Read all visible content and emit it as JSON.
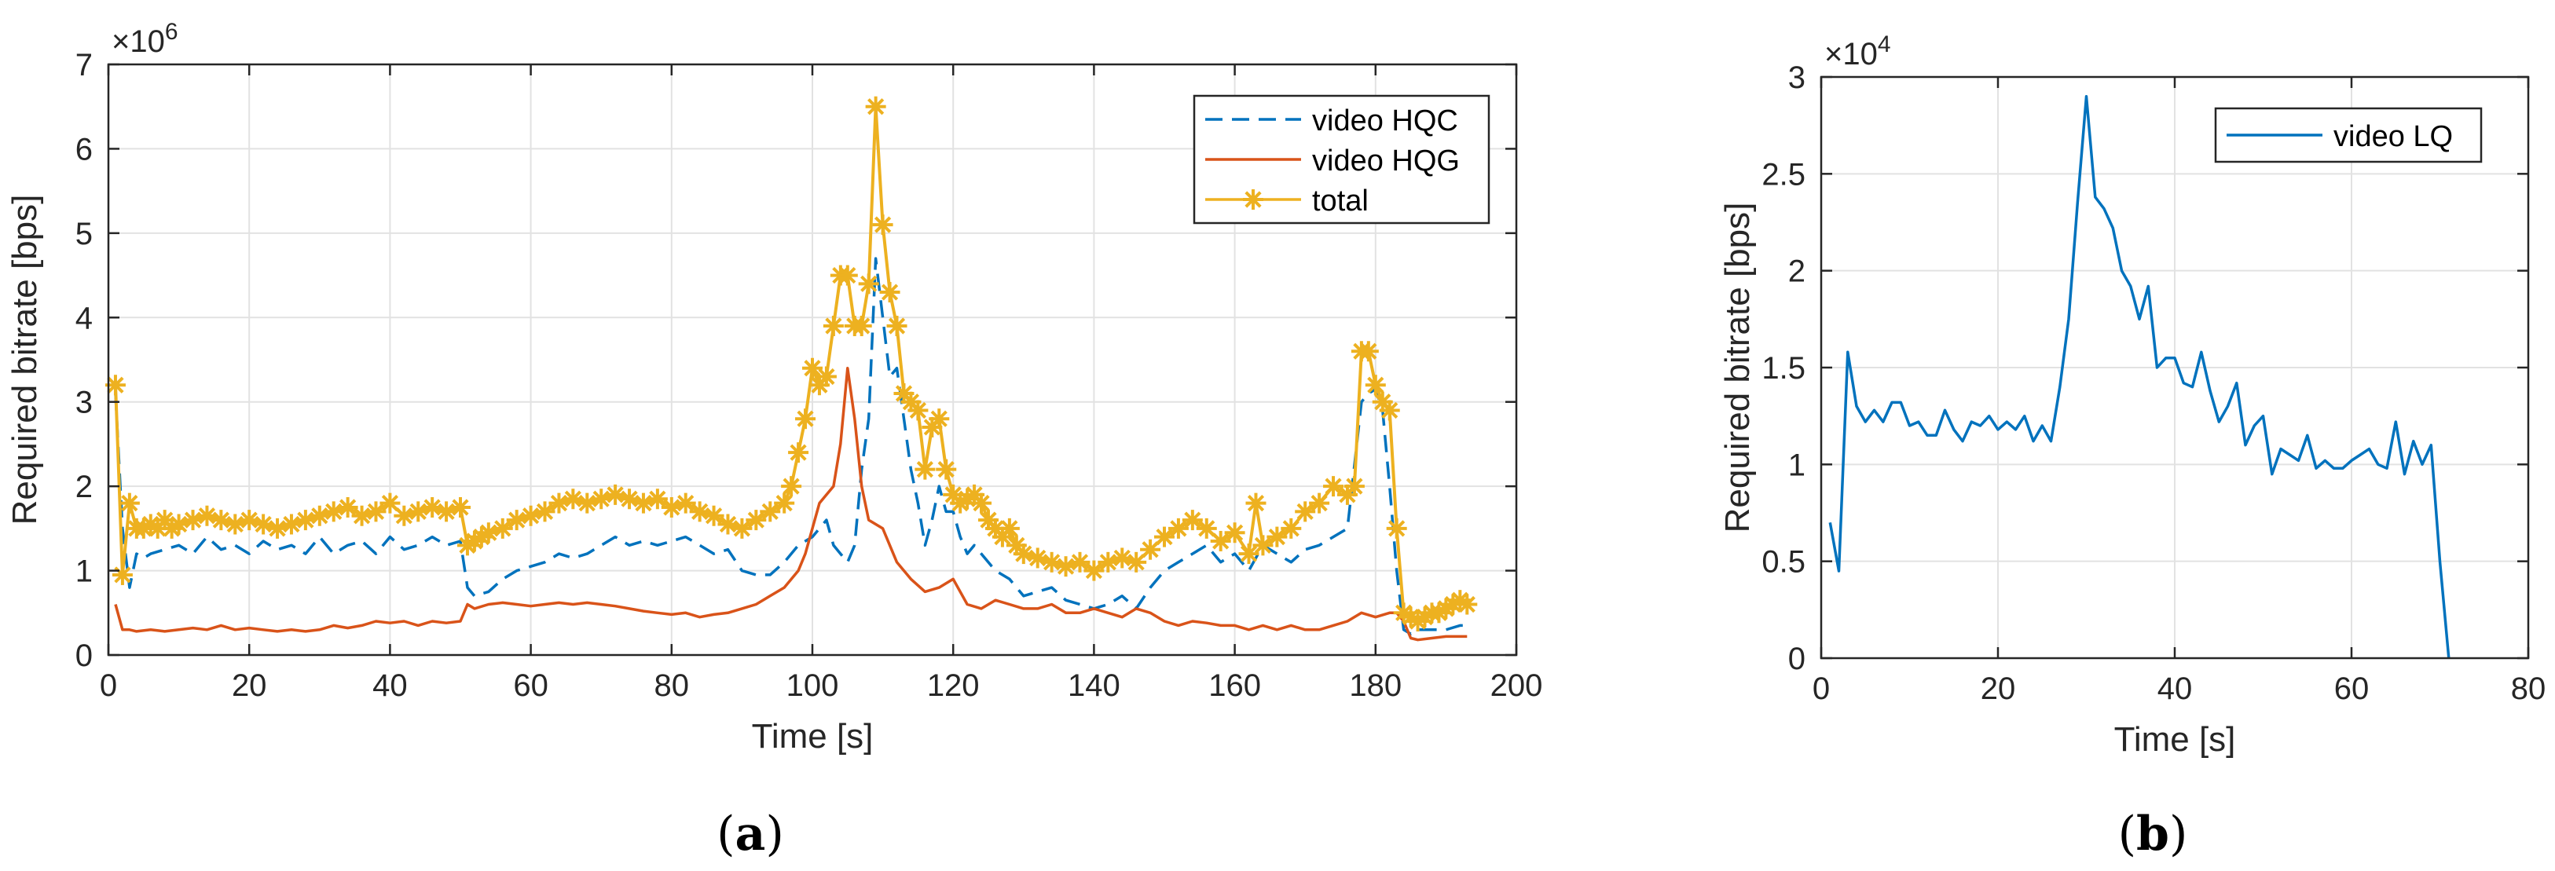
{
  "chart_data": [
    {
      "type": "line",
      "panel_label": "(a)",
      "panel_letter": "a",
      "title": "",
      "xlabel": "Time [s]",
      "ylabel": "Required bitrate [bps]",
      "exponent_label": "×10",
      "exponent_power": "6",
      "xlim": [
        0,
        200
      ],
      "ylim": [
        0,
        7
      ],
      "xticks": [
        0,
        20,
        40,
        60,
        80,
        100,
        120,
        140,
        160,
        180,
        200
      ],
      "yticks": [
        0,
        1,
        2,
        3,
        4,
        5,
        6,
        7
      ],
      "grid": true,
      "legend_position": "top-right",
      "colors": {
        "hqc": "#0072bd",
        "hqg": "#d95319",
        "total": "#edb120"
      },
      "series": [
        {
          "name": "video HQC",
          "style": "dashed",
          "x": [
            1,
            2,
            3,
            4,
            5,
            6,
            8,
            10,
            12,
            14,
            16,
            18,
            20,
            22,
            24,
            26,
            28,
            30,
            32,
            34,
            36,
            38,
            40,
            42,
            44,
            46,
            48,
            50,
            51,
            52,
            54,
            56,
            58,
            60,
            62,
            64,
            66,
            68,
            70,
            72,
            74,
            76,
            78,
            80,
            82,
            84,
            86,
            88,
            90,
            92,
            94,
            96,
            98,
            100,
            101,
            102,
            103,
            104,
            105,
            106,
            107,
            108,
            109,
            110,
            111,
            112,
            113,
            114,
            115,
            116,
            117,
            118,
            119,
            120,
            121,
            122,
            123,
            124,
            126,
            128,
            130,
            132,
            134,
            136,
            138,
            140,
            142,
            144,
            146,
            148,
            150,
            152,
            154,
            156,
            158,
            160,
            162,
            164,
            166,
            168,
            170,
            172,
            174,
            176,
            178,
            179,
            180,
            181,
            182,
            183,
            184,
            185,
            186,
            188,
            190,
            192,
            193
          ],
          "y": [
            3.1,
            1.5,
            0.8,
            1.2,
            1.15,
            1.2,
            1.25,
            1.3,
            1.2,
            1.4,
            1.25,
            1.3,
            1.2,
            1.35,
            1.25,
            1.3,
            1.2,
            1.4,
            1.2,
            1.3,
            1.35,
            1.2,
            1.4,
            1.25,
            1.3,
            1.4,
            1.3,
            1.35,
            0.8,
            0.7,
            0.75,
            0.9,
            1.0,
            1.05,
            1.1,
            1.2,
            1.15,
            1.2,
            1.3,
            1.4,
            1.3,
            1.35,
            1.3,
            1.35,
            1.4,
            1.3,
            1.2,
            1.25,
            1.0,
            0.95,
            0.95,
            1.1,
            1.3,
            1.4,
            1.5,
            1.6,
            1.3,
            1.2,
            1.1,
            1.3,
            2.2,
            2.8,
            4.7,
            4.0,
            3.3,
            3.4,
            2.8,
            2.2,
            1.8,
            1.3,
            1.6,
            2.0,
            1.7,
            1.7,
            1.4,
            1.2,
            1.3,
            1.2,
            1.0,
            0.9,
            0.7,
            0.75,
            0.8,
            0.65,
            0.6,
            0.55,
            0.6,
            0.7,
            0.55,
            0.8,
            1.0,
            1.1,
            1.2,
            1.3,
            1.1,
            1.2,
            1.0,
            1.3,
            1.2,
            1.1,
            1.25,
            1.3,
            1.4,
            1.5,
            3.0,
            3.1,
            3.15,
            2.9,
            2.0,
            1.0,
            0.3,
            0.25,
            0.3,
            0.3,
            0.3,
            0.35,
            0.35
          ]
        },
        {
          "name": "video HQG",
          "style": "solid",
          "x": [
            1,
            2,
            3,
            4,
            6,
            8,
            10,
            12,
            14,
            16,
            18,
            20,
            22,
            24,
            26,
            28,
            30,
            32,
            34,
            36,
            38,
            40,
            42,
            44,
            46,
            48,
            50,
            51,
            52,
            54,
            56,
            58,
            60,
            62,
            64,
            66,
            68,
            70,
            72,
            74,
            76,
            78,
            80,
            82,
            84,
            86,
            88,
            90,
            92,
            94,
            96,
            98,
            99,
            100,
            101,
            102,
            103,
            104,
            105,
            106,
            107,
            108,
            110,
            112,
            114,
            116,
            118,
            120,
            122,
            124,
            126,
            128,
            130,
            132,
            134,
            136,
            138,
            140,
            142,
            144,
            146,
            148,
            150,
            152,
            154,
            156,
            158,
            160,
            162,
            164,
            166,
            168,
            170,
            172,
            174,
            176,
            178,
            180,
            182,
            183,
            184,
            185,
            186,
            188,
            190,
            192,
            193
          ],
          "y": [
            0.6,
            0.3,
            0.3,
            0.28,
            0.3,
            0.28,
            0.3,
            0.32,
            0.3,
            0.35,
            0.3,
            0.32,
            0.3,
            0.28,
            0.3,
            0.28,
            0.3,
            0.35,
            0.32,
            0.35,
            0.4,
            0.38,
            0.4,
            0.35,
            0.4,
            0.38,
            0.4,
            0.6,
            0.55,
            0.6,
            0.62,
            0.6,
            0.58,
            0.6,
            0.62,
            0.6,
            0.62,
            0.6,
            0.58,
            0.55,
            0.52,
            0.5,
            0.48,
            0.5,
            0.45,
            0.48,
            0.5,
            0.55,
            0.6,
            0.7,
            0.8,
            1.0,
            1.2,
            1.5,
            1.8,
            1.9,
            2.0,
            2.5,
            3.4,
            2.8,
            2.0,
            1.6,
            1.5,
            1.1,
            0.9,
            0.75,
            0.8,
            0.9,
            0.6,
            0.55,
            0.65,
            0.6,
            0.55,
            0.55,
            0.6,
            0.5,
            0.5,
            0.55,
            0.5,
            0.45,
            0.55,
            0.5,
            0.4,
            0.35,
            0.4,
            0.38,
            0.35,
            0.35,
            0.3,
            0.35,
            0.3,
            0.35,
            0.3,
            0.3,
            0.35,
            0.4,
            0.5,
            0.45,
            0.5,
            0.5,
            0.4,
            0.2,
            0.18,
            0.2,
            0.22,
            0.22,
            0.22
          ]
        },
        {
          "name": "total",
          "style": "solid-star",
          "x": [
            1,
            2,
            3,
            4,
            5,
            6,
            7,
            8,
            9,
            10,
            12,
            14,
            16,
            18,
            20,
            22,
            24,
            26,
            28,
            30,
            32,
            34,
            36,
            38,
            40,
            42,
            44,
            46,
            48,
            50,
            51,
            52,
            53,
            54,
            56,
            58,
            60,
            62,
            64,
            66,
            68,
            70,
            72,
            74,
            76,
            78,
            80,
            82,
            84,
            86,
            88,
            90,
            92,
            94,
            96,
            97,
            98,
            99,
            100,
            101,
            102,
            103,
            104,
            105,
            106,
            107,
            108,
            109,
            110,
            111,
            112,
            113,
            114,
            115,
            116,
            117,
            118,
            119,
            120,
            121,
            122,
            123,
            124,
            125,
            126,
            127,
            128,
            129,
            130,
            132,
            134,
            136,
            138,
            140,
            142,
            144,
            146,
            148,
            150,
            152,
            154,
            156,
            158,
            160,
            162,
            163,
            164,
            166,
            168,
            170,
            172,
            174,
            176,
            177,
            178,
            179,
            180,
            181,
            182,
            183,
            184,
            185,
            186,
            187,
            188,
            189,
            190,
            191,
            192,
            193
          ],
          "y": [
            3.2,
            0.95,
            1.8,
            1.5,
            1.5,
            1.55,
            1.5,
            1.6,
            1.5,
            1.55,
            1.6,
            1.65,
            1.6,
            1.55,
            1.6,
            1.55,
            1.5,
            1.55,
            1.6,
            1.65,
            1.7,
            1.75,
            1.65,
            1.7,
            1.8,
            1.65,
            1.7,
            1.75,
            1.7,
            1.75,
            1.3,
            1.35,
            1.4,
            1.45,
            1.5,
            1.6,
            1.65,
            1.7,
            1.8,
            1.85,
            1.8,
            1.85,
            1.9,
            1.85,
            1.8,
            1.85,
            1.75,
            1.8,
            1.7,
            1.65,
            1.55,
            1.5,
            1.6,
            1.7,
            1.8,
            2.0,
            2.4,
            2.8,
            3.4,
            3.2,
            3.3,
            3.9,
            4.5,
            4.5,
            3.9,
            3.9,
            4.4,
            6.5,
            5.1,
            4.3,
            3.9,
            3.1,
            3.0,
            2.9,
            2.2,
            2.7,
            2.8,
            2.2,
            1.9,
            1.8,
            1.85,
            1.9,
            1.8,
            1.6,
            1.5,
            1.4,
            1.5,
            1.3,
            1.2,
            1.15,
            1.1,
            1.05,
            1.1,
            1.0,
            1.1,
            1.15,
            1.1,
            1.25,
            1.4,
            1.5,
            1.6,
            1.5,
            1.35,
            1.45,
            1.2,
            1.8,
            1.3,
            1.4,
            1.5,
            1.7,
            1.8,
            2.0,
            1.9,
            2.0,
            3.6,
            3.6,
            3.2,
            3.0,
            2.9,
            1.5,
            0.5,
            0.45,
            0.4,
            0.45,
            0.5,
            0.5,
            0.55,
            0.6,
            0.65,
            0.6
          ]
        }
      ]
    },
    {
      "type": "line",
      "panel_label": "(b)",
      "panel_letter": "b",
      "title": "",
      "xlabel": "Time [s]",
      "ylabel": "Required bitrate [bps]",
      "exponent_label": "×10",
      "exponent_power": "4",
      "xlim": [
        0,
        80
      ],
      "ylim": [
        0,
        3
      ],
      "xticks": [
        0,
        20,
        40,
        60,
        80
      ],
      "yticks": [
        0,
        0.5,
        1,
        1.5,
        2,
        2.5,
        3
      ],
      "ytick_labels": [
        "0",
        "0.5",
        "1",
        "1.5",
        "2",
        "2.5",
        "3"
      ],
      "grid": true,
      "legend_position": "top-right",
      "colors": {
        "lq": "#0072bd"
      },
      "series": [
        {
          "name": "video LQ",
          "style": "solid",
          "x": [
            1,
            2,
            3,
            4,
            5,
            6,
            7,
            8,
            9,
            10,
            11,
            12,
            13,
            14,
            15,
            16,
            17,
            18,
            19,
            20,
            21,
            22,
            23,
            24,
            25,
            26,
            27,
            28,
            29,
            30,
            31,
            32,
            33,
            34,
            35,
            36,
            37,
            38,
            39,
            40,
            41,
            42,
            43,
            44,
            45,
            46,
            47,
            48,
            49,
            50,
            51,
            52,
            53,
            54,
            55,
            56,
            57,
            58,
            59,
            60,
            61,
            62,
            63,
            64,
            65,
            66,
            67,
            68,
            69,
            70,
            71
          ],
          "y": [
            0.7,
            0.45,
            1.58,
            1.3,
            1.22,
            1.28,
            1.22,
            1.32,
            1.32,
            1.2,
            1.22,
            1.15,
            1.15,
            1.28,
            1.18,
            1.12,
            1.22,
            1.2,
            1.25,
            1.18,
            1.22,
            1.18,
            1.25,
            1.12,
            1.2,
            1.12,
            1.4,
            1.75,
            2.35,
            2.9,
            2.38,
            2.32,
            2.22,
            2.0,
            1.92,
            1.75,
            1.92,
            1.5,
            1.55,
            1.55,
            1.42,
            1.4,
            1.58,
            1.38,
            1.22,
            1.3,
            1.42,
            1.1,
            1.2,
            1.25,
            0.95,
            1.08,
            1.05,
            1.02,
            1.15,
            0.98,
            1.02,
            0.98,
            0.98,
            1.02,
            1.05,
            1.08,
            1.0,
            0.98,
            1.22,
            0.95,
            1.12,
            1.0,
            1.1,
            0.5,
            0.0
          ]
        }
      ]
    }
  ]
}
